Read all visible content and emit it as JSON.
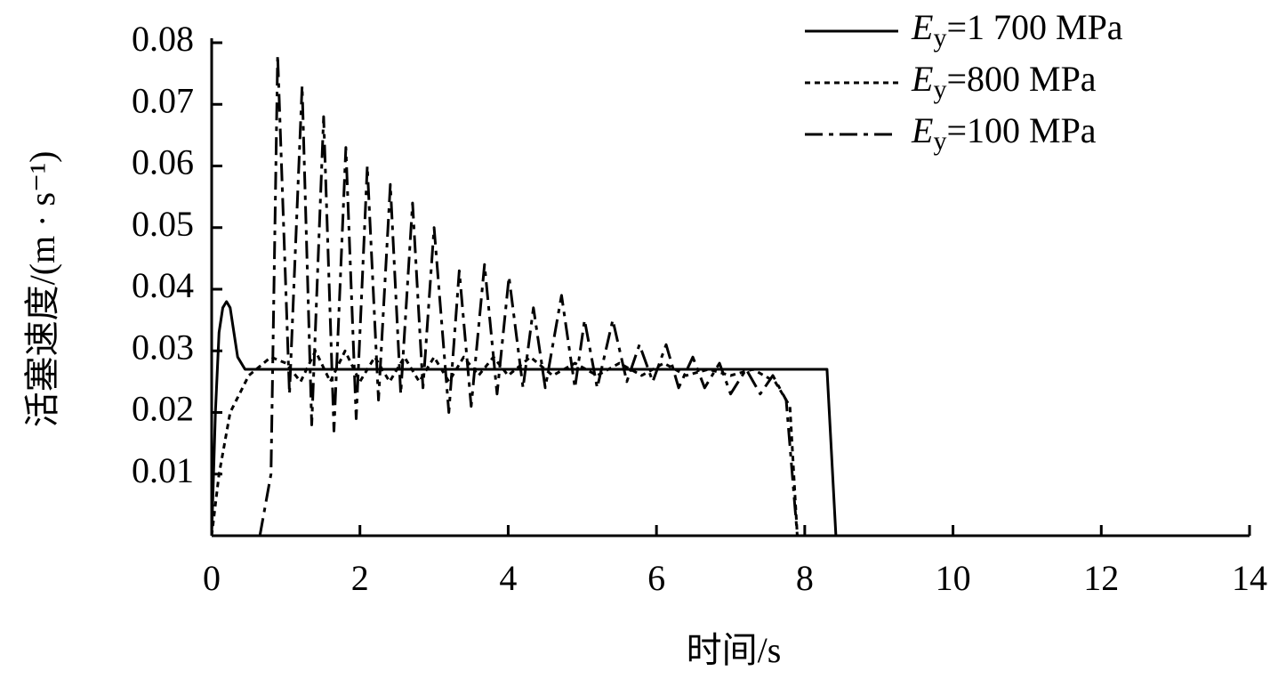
{
  "chart_data": {
    "type": "line",
    "x_label": "时间/s",
    "y_label": "活塞速度/(m · s⁻¹)",
    "xlim": [
      0,
      14
    ],
    "xticks": [
      0,
      2,
      4,
      6,
      8,
      10,
      12,
      14
    ],
    "ylim": [
      0,
      0.08
    ],
    "yticks": [
      0.01,
      0.02,
      0.03,
      0.04,
      0.05,
      0.06,
      0.07,
      0.08
    ],
    "legend": "upper right",
    "series": [
      {
        "name": "Ey=1 700 MPa",
        "color": "#000000",
        "line_style": "solid",
        "x": [
          0,
          0.05,
          0.1,
          0.15,
          0.2,
          0.25,
          0.3,
          0.35,
          0.45,
          0.6,
          8.3,
          8.42,
          8.8
        ],
        "values": [
          0,
          0.02,
          0.033,
          0.037,
          0.038,
          0.037,
          0.033,
          0.029,
          0.027,
          0.027,
          0.027,
          0,
          0
        ]
      },
      {
        "name": "Ey=800 MPa",
        "color": "#000000",
        "line_style": "dotted",
        "x": [
          0,
          0.1,
          0.25,
          0.5,
          0.8,
          1.0,
          1.2,
          1.4,
          1.6,
          1.8,
          2.0,
          2.2,
          2.4,
          2.6,
          2.8,
          3.0,
          3.2,
          3.4,
          3.6,
          3.8,
          4.0,
          4.3,
          4.6,
          4.9,
          5.2,
          5.5,
          5.8,
          6.1,
          6.4,
          6.7,
          7.0,
          7.3,
          7.6,
          7.8,
          7.9
        ],
        "values": [
          0,
          0.01,
          0.02,
          0.026,
          0.029,
          0.028,
          0.025,
          0.03,
          0.025,
          0.03,
          0.025,
          0.029,
          0.025,
          0.029,
          0.025,
          0.029,
          0.025,
          0.029,
          0.026,
          0.029,
          0.026,
          0.029,
          0.026,
          0.028,
          0.026,
          0.028,
          0.026,
          0.028,
          0.026,
          0.027,
          0.026,
          0.027,
          0.025,
          0.021,
          0
        ]
      },
      {
        "name": "Ey=100 MPa",
        "color": "#000000",
        "line_style": "dashdot",
        "x": [
          0.65,
          0.8,
          0.89,
          1.05,
          1.22,
          1.35,
          1.51,
          1.65,
          1.81,
          1.95,
          2.1,
          2.25,
          2.41,
          2.55,
          2.71,
          2.85,
          3.0,
          3.2,
          3.34,
          3.5,
          3.68,
          3.85,
          4.01,
          4.2,
          4.34,
          4.5,
          4.72,
          4.9,
          5.03,
          5.2,
          5.41,
          5.6,
          5.77,
          5.95,
          6.13,
          6.3,
          6.49,
          6.65,
          6.85,
          7.0,
          7.21,
          7.4,
          7.57,
          7.75,
          7.9
        ],
        "values": [
          0,
          0.01,
          0.078,
          0.023,
          0.073,
          0.018,
          0.068,
          0.017,
          0.063,
          0.019,
          0.06,
          0.022,
          0.057,
          0.023,
          0.054,
          0.024,
          0.05,
          0.02,
          0.043,
          0.021,
          0.044,
          0.023,
          0.042,
          0.024,
          0.037,
          0.024,
          0.039,
          0.024,
          0.035,
          0.024,
          0.035,
          0.025,
          0.031,
          0.025,
          0.031,
          0.024,
          0.029,
          0.024,
          0.028,
          0.023,
          0.027,
          0.023,
          0.026,
          0.022,
          0
        ]
      }
    ]
  }
}
